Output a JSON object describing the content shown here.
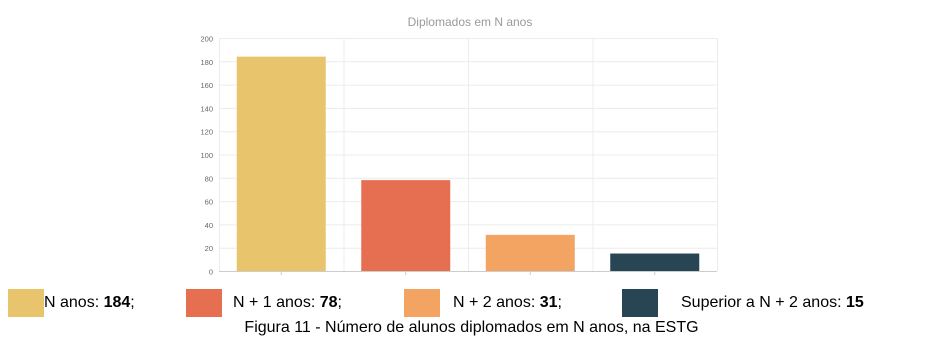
{
  "chart_data": {
    "type": "bar",
    "title": "Diplomados em N anos",
    "categories": [
      "N anos",
      "N + 1 anos",
      "N + 2 anos",
      "Superior a N + 2 anos"
    ],
    "values": [
      184,
      78,
      31,
      15
    ],
    "colors": [
      "#e8c46c",
      "#e66f52",
      "#f3a462",
      "#274552"
    ],
    "ylim": [
      0,
      200
    ],
    "yticks": [
      0,
      20,
      40,
      60,
      80,
      100,
      120,
      140,
      160,
      180,
      200
    ],
    "grid": true,
    "xlabel": "",
    "ylabel": ""
  },
  "legend": [
    {
      "label": "N anos: ",
      "value": "184",
      "sep": ";"
    },
    {
      "label": "N + 1 anos: ",
      "value": "78",
      "sep": ";"
    },
    {
      "label": "N + 2 anos: ",
      "value": "31",
      "sep": ";"
    },
    {
      "label": "Superior a N + 2 anos: ",
      "value": "15",
      "sep": ""
    }
  ],
  "caption": "Figura 11 - Número de alunos diplomados em N anos, na ESTG"
}
